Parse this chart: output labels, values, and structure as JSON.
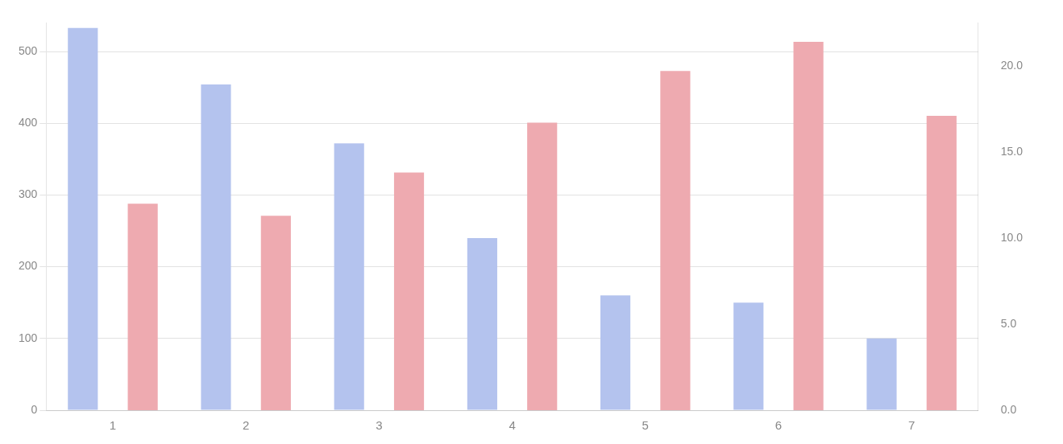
{
  "chart_data": {
    "type": "bar",
    "categories": [
      "1",
      "2",
      "3",
      "4",
      "5",
      "6",
      "7"
    ],
    "series": [
      {
        "color": "#b4c3ee",
        "values": [
          533,
          454,
          372,
          240,
          160,
          150,
          100
        ]
      },
      {
        "color": "#eeaab0",
        "axis": "y2",
        "values": [
          12.0,
          11.3,
          13.8,
          16.7,
          19.7,
          21.4,
          17.1
        ]
      }
    ],
    "ylim": [
      0,
      540
    ],
    "yticks": [
      0,
      100,
      200,
      300,
      400,
      500
    ],
    "y2lim": [
      0,
      22.5
    ],
    "y2ticks": [
      {
        "value": 0,
        "label": "0.0"
      },
      {
        "value": 5,
        "label": "5.0"
      },
      {
        "value": 10,
        "label": "10.0"
      },
      {
        "value": 15,
        "label": "15.0"
      },
      {
        "value": 20,
        "label": "20.0"
      }
    ],
    "grid": "y"
  }
}
